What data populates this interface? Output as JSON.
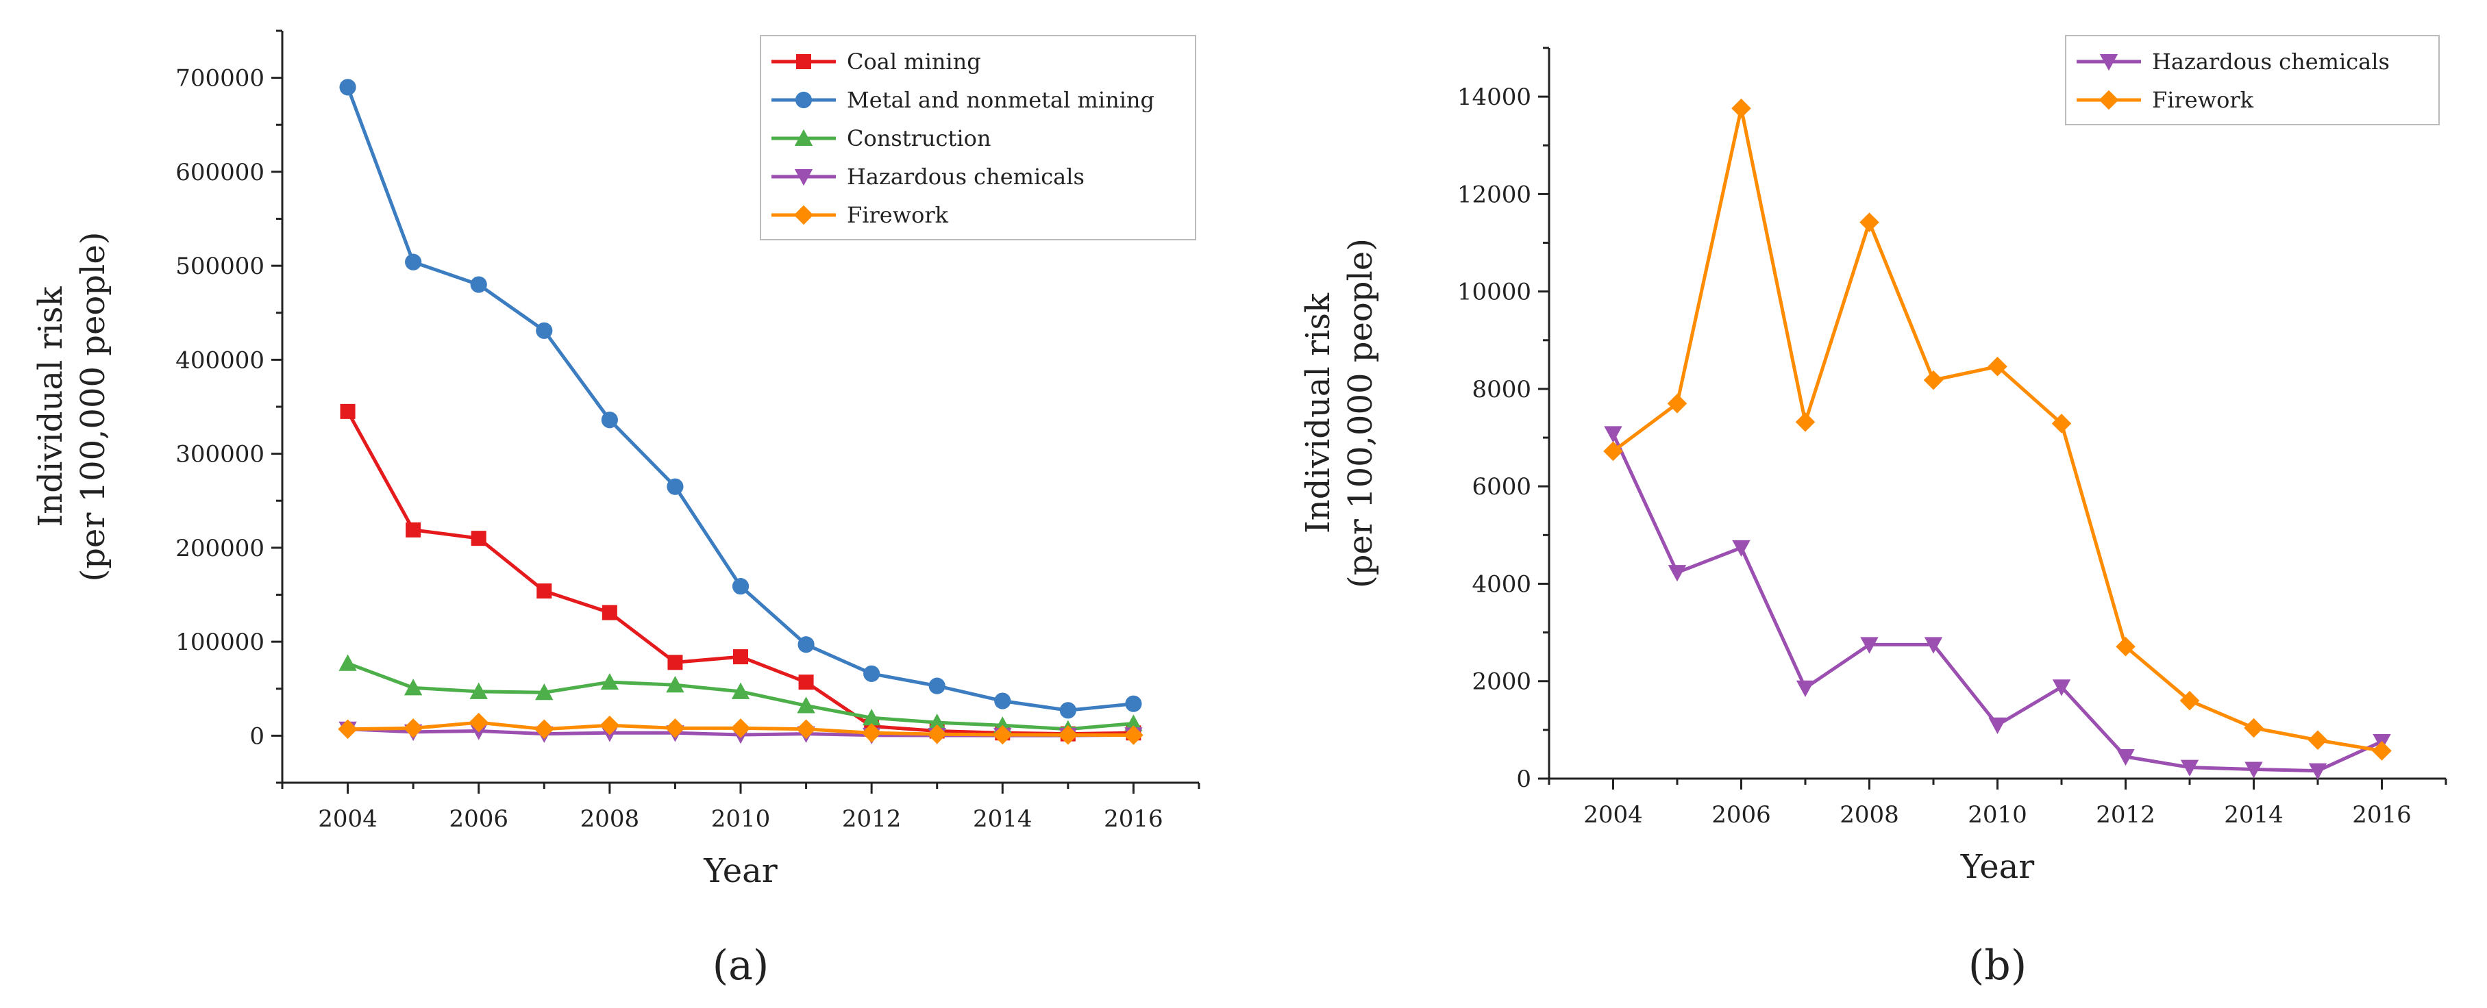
{
  "chart_data": [
    {
      "type": "line",
      "panel_label": "(a)",
      "xlabel": "Year",
      "ylabel": [
        "Individual risk",
        "(per 100,000 people)"
      ],
      "x": [
        2004,
        2005,
        2006,
        2007,
        2008,
        2009,
        2010,
        2011,
        2012,
        2013,
        2014,
        2015,
        2016
      ],
      "xticks": [
        2004,
        2006,
        2008,
        2010,
        2012,
        2014,
        2016
      ],
      "xlim": [
        2003,
        2017
      ],
      "yticks": [
        0,
        100000,
        200000,
        300000,
        400000,
        500000,
        600000,
        700000
      ],
      "ylim": [
        -50000,
        750000
      ],
      "grid": false,
      "legend_position": "top-right",
      "series": [
        {
          "name": "Coal mining",
          "color": "#e41a1c",
          "marker": "square",
          "values": [
            345000,
            219000,
            210000,
            154000,
            131000,
            78000,
            84000,
            57000,
            10000,
            5000,
            3000,
            2000,
            3000
          ]
        },
        {
          "name": "Metal and nonmetal mining",
          "color": "#3b7dc0",
          "marker": "circle",
          "values": [
            690000,
            504000,
            480000,
            431000,
            336000,
            265000,
            159000,
            97000,
            66000,
            53000,
            37000,
            27000,
            34000
          ]
        },
        {
          "name": "Construction",
          "color": "#4daf4a",
          "marker": "triangle-up",
          "values": [
            77000,
            51000,
            47000,
            46000,
            57000,
            54000,
            47000,
            32000,
            19000,
            14000,
            11000,
            7000,
            13000
          ]
        },
        {
          "name": "Hazardous chemicals",
          "color": "#9b4fb0",
          "marker": "triangle-down",
          "values": [
            7000,
            4000,
            5000,
            2000,
            3000,
            3000,
            1000,
            2000,
            500,
            250,
            200,
            150,
            800
          ]
        },
        {
          "name": "Firework",
          "color": "#ff8c00",
          "marker": "diamond",
          "values": [
            7000,
            8000,
            14000,
            7000,
            11000,
            8000,
            8000,
            7000,
            3000,
            1600,
            1000,
            800,
            600
          ]
        }
      ]
    },
    {
      "type": "line",
      "panel_label": "(b)",
      "xlabel": "Year",
      "ylabel": [
        "Individual risk",
        "(per 100,000 people)"
      ],
      "x": [
        2004,
        2005,
        2006,
        2007,
        2008,
        2009,
        2010,
        2011,
        2012,
        2013,
        2014,
        2015,
        2016
      ],
      "xticks": [
        2004,
        2006,
        2008,
        2010,
        2012,
        2014,
        2016
      ],
      "xlim": [
        2003,
        2017
      ],
      "yticks": [
        0,
        2000,
        4000,
        6000,
        8000,
        10000,
        12000,
        14000
      ],
      "ylim": [
        0,
        15000
      ],
      "grid": false,
      "legend_position": "top-right",
      "series": [
        {
          "name": "Hazardous chemicals",
          "color": "#9b4fb0",
          "marker": "triangle-down",
          "values": [
            7080,
            4230,
            4740,
            1860,
            2750,
            2750,
            1100,
            1880,
            450,
            230,
            190,
            160,
            760
          ]
        },
        {
          "name": "Firework",
          "color": "#ff8c00",
          "marker": "diamond",
          "values": [
            6720,
            7700,
            13760,
            7320,
            11420,
            8180,
            8460,
            7290,
            2710,
            1600,
            1040,
            790,
            570
          ]
        }
      ]
    }
  ]
}
